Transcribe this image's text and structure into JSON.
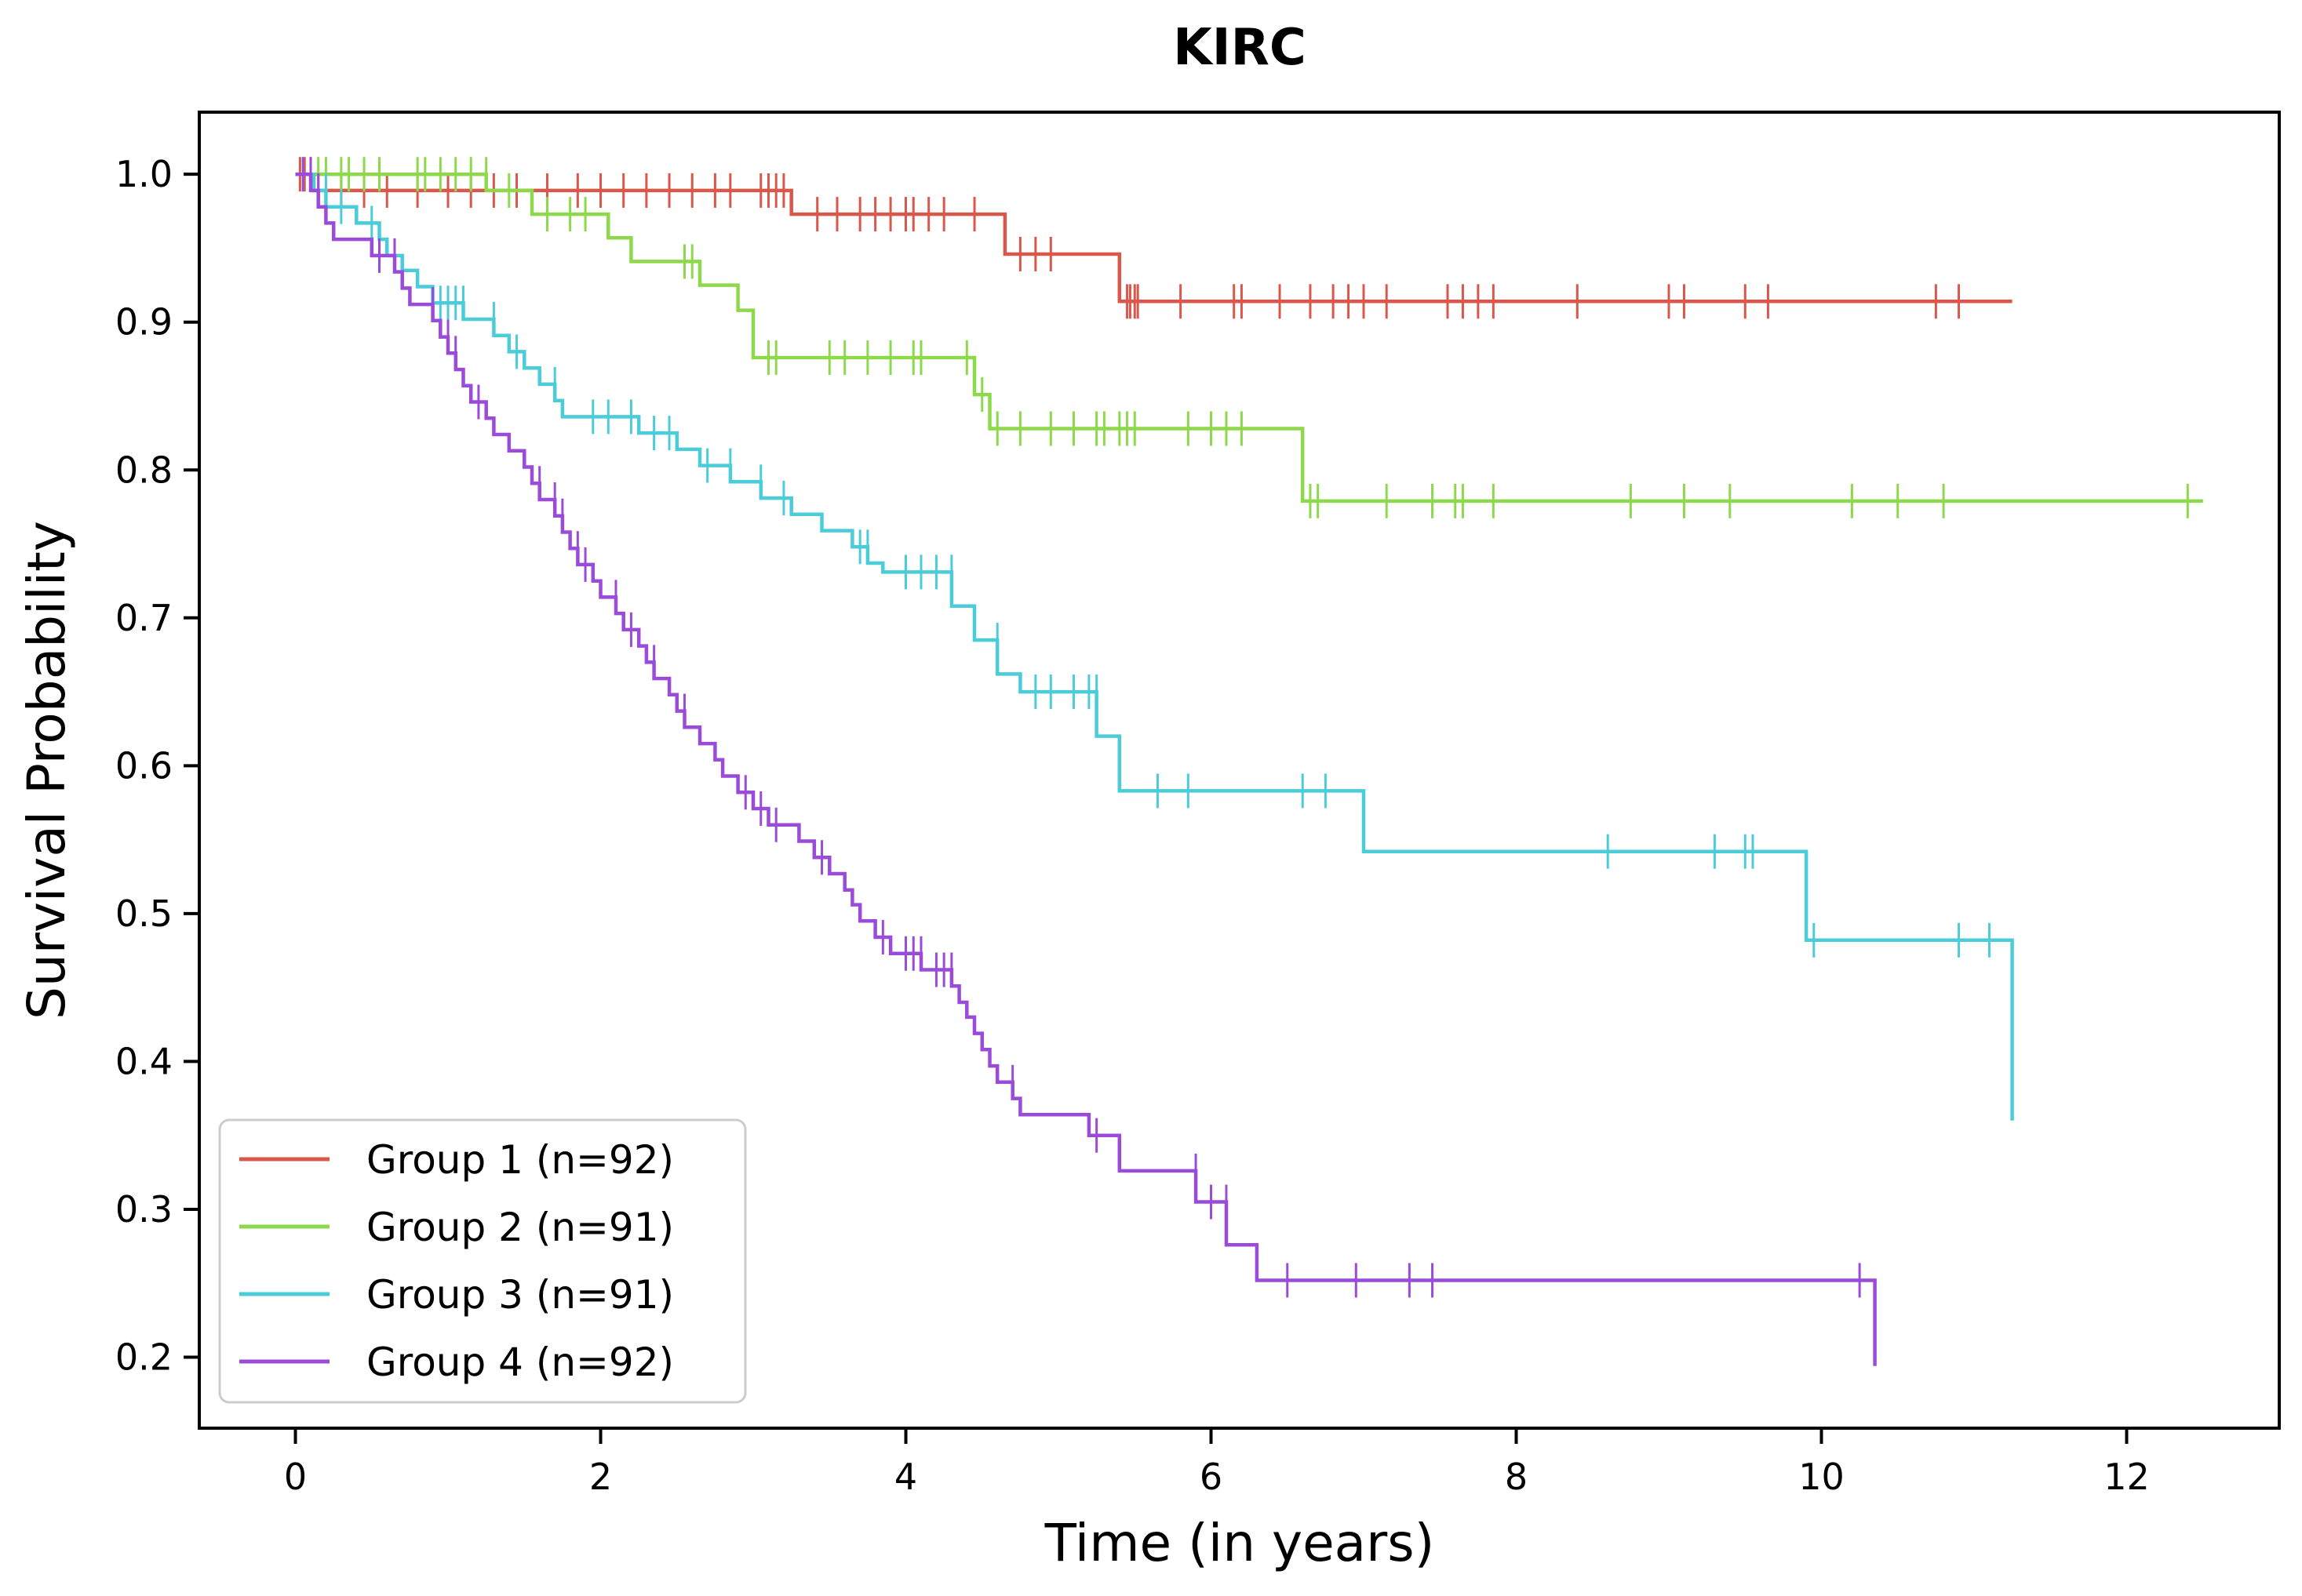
{
  "chart_data": {
    "type": "line",
    "title": "KIRC",
    "xlabel": "Time (in years)",
    "ylabel": "Survival Probability",
    "xlim": [
      -0.63,
      13.0
    ],
    "ylim": [
      0.152,
      1.042
    ],
    "xticks": [
      0,
      2,
      4,
      6,
      8,
      10,
      12
    ],
    "yticks": [
      0.2,
      0.3,
      0.4,
      0.5,
      0.6,
      0.7,
      0.8,
      0.9,
      1.0
    ],
    "xtick_labels": [
      "0",
      "2",
      "4",
      "6",
      "8",
      "10",
      "12"
    ],
    "ytick_labels": [
      "0.2",
      "0.3",
      "0.4",
      "0.5",
      "0.6",
      "0.7",
      "0.8",
      "0.9",
      "1.0"
    ],
    "grid": false,
    "legend_position": "lower-left",
    "series": [
      {
        "name": "Group 1 (n=92)",
        "color": "#d9574b",
        "steps": [
          [
            0,
            1.0
          ],
          [
            0.12,
            0.989
          ],
          [
            3.25,
            0.973
          ],
          [
            4.65,
            0.946
          ],
          [
            5.4,
            0.914
          ],
          [
            11.25,
            0.914
          ]
        ],
        "censors": [
          0.03,
          0.06,
          0.1,
          0.15,
          0.3,
          0.45,
          0.6,
          0.8,
          1.0,
          1.15,
          1.3,
          1.45,
          1.65,
          1.85,
          2.0,
          2.15,
          2.3,
          2.45,
          2.6,
          2.75,
          2.85,
          3.05,
          3.1,
          3.15,
          3.2,
          3.42,
          3.55,
          3.7,
          3.8,
          3.9,
          4.0,
          4.05,
          4.15,
          4.25,
          4.45,
          4.75,
          4.85,
          4.95,
          5.45,
          5.47,
          5.5,
          5.52,
          5.8,
          6.15,
          6.2,
          6.45,
          6.65,
          6.8,
          6.9,
          7.0,
          7.15,
          7.55,
          7.65,
          7.75,
          7.85,
          8.4,
          9.0,
          9.1,
          9.5,
          9.65,
          10.75,
          10.9
        ]
      },
      {
        "name": "Group 2 (n=91)",
        "color": "#8dd94b",
        "steps": [
          [
            0,
            1.0
          ],
          [
            1.25,
            0.989
          ],
          [
            1.55,
            0.973
          ],
          [
            2.05,
            0.957
          ],
          [
            2.2,
            0.941
          ],
          [
            2.65,
            0.925
          ],
          [
            2.9,
            0.908
          ],
          [
            3.0,
            0.876
          ],
          [
            4.45,
            0.851
          ],
          [
            4.55,
            0.828
          ],
          [
            6.6,
            0.779
          ],
          [
            12.5,
            0.779
          ]
        ],
        "censors": [
          0.05,
          0.1,
          0.15,
          0.2,
          0.3,
          0.35,
          0.45,
          0.55,
          0.8,
          0.85,
          0.95,
          1.05,
          1.15,
          1.25,
          1.4,
          1.65,
          1.8,
          1.9,
          2.55,
          2.6,
          3.1,
          3.15,
          3.5,
          3.6,
          3.75,
          3.9,
          4.05,
          4.1,
          4.4,
          4.5,
          4.6,
          4.75,
          4.95,
          5.1,
          5.25,
          5.3,
          5.4,
          5.45,
          5.5,
          5.85,
          6.0,
          6.1,
          6.2,
          6.65,
          6.7,
          7.15,
          7.45,
          7.6,
          7.65,
          7.85,
          8.75,
          9.1,
          9.4,
          10.2,
          10.5,
          10.8,
          12.4
        ]
      },
      {
        "name": "Group 3 (n=91)",
        "color": "#4bccd9",
        "steps": [
          [
            0,
            1.0
          ],
          [
            0.12,
            0.989
          ],
          [
            0.2,
            0.978
          ],
          [
            0.4,
            0.967
          ],
          [
            0.55,
            0.956
          ],
          [
            0.6,
            0.945
          ],
          [
            0.7,
            0.935
          ],
          [
            0.8,
            0.924
          ],
          [
            0.9,
            0.913
          ],
          [
            1.1,
            0.902
          ],
          [
            1.3,
            0.891
          ],
          [
            1.4,
            0.88
          ],
          [
            1.5,
            0.869
          ],
          [
            1.6,
            0.858
          ],
          [
            1.7,
            0.847
          ],
          [
            1.75,
            0.836
          ],
          [
            2.25,
            0.825
          ],
          [
            2.5,
            0.814
          ],
          [
            2.65,
            0.803
          ],
          [
            2.85,
            0.792
          ],
          [
            3.05,
            0.781
          ],
          [
            3.25,
            0.77
          ],
          [
            3.45,
            0.759
          ],
          [
            3.65,
            0.748
          ],
          [
            3.75,
            0.737
          ],
          [
            3.85,
            0.731
          ],
          [
            4.3,
            0.708
          ],
          [
            4.45,
            0.685
          ],
          [
            4.6,
            0.662
          ],
          [
            4.75,
            0.65
          ],
          [
            5.25,
            0.62
          ],
          [
            5.4,
            0.583
          ],
          [
            7.0,
            0.542
          ],
          [
            9.9,
            0.482
          ],
          [
            11.25,
            0.36
          ]
        ],
        "censors": [
          0.2,
          0.3,
          0.5,
          0.65,
          0.95,
          1.0,
          1.05,
          1.1,
          1.3,
          1.45,
          1.7,
          1.95,
          2.05,
          2.2,
          2.35,
          2.45,
          2.7,
          2.85,
          3.05,
          3.2,
          3.7,
          3.75,
          4.0,
          4.1,
          4.2,
          4.3,
          4.6,
          4.85,
          4.95,
          5.1,
          5.2,
          5.25,
          5.65,
          5.85,
          6.6,
          6.75,
          8.6,
          9.3,
          9.5,
          9.55,
          9.95,
          10.9,
          11.1
        ]
      },
      {
        "name": "Group 4 (n=92)",
        "color": "#9b4bd9",
        "steps": [
          [
            0,
            1.0
          ],
          [
            0.1,
            0.989
          ],
          [
            0.15,
            0.978
          ],
          [
            0.2,
            0.967
          ],
          [
            0.25,
            0.956
          ],
          [
            0.5,
            0.945
          ],
          [
            0.65,
            0.934
          ],
          [
            0.7,
            0.923
          ],
          [
            0.75,
            0.912
          ],
          [
            0.9,
            0.901
          ],
          [
            0.95,
            0.89
          ],
          [
            1.0,
            0.879
          ],
          [
            1.05,
            0.868
          ],
          [
            1.1,
            0.857
          ],
          [
            1.15,
            0.846
          ],
          [
            1.25,
            0.835
          ],
          [
            1.3,
            0.824
          ],
          [
            1.4,
            0.813
          ],
          [
            1.5,
            0.802
          ],
          [
            1.55,
            0.791
          ],
          [
            1.6,
            0.78
          ],
          [
            1.7,
            0.769
          ],
          [
            1.75,
            0.758
          ],
          [
            1.8,
            0.747
          ],
          [
            1.85,
            0.736
          ],
          [
            1.95,
            0.725
          ],
          [
            2.0,
            0.714
          ],
          [
            2.1,
            0.703
          ],
          [
            2.15,
            0.692
          ],
          [
            2.25,
            0.681
          ],
          [
            2.3,
            0.67
          ],
          [
            2.35,
            0.659
          ],
          [
            2.45,
            0.648
          ],
          [
            2.5,
            0.637
          ],
          [
            2.55,
            0.626
          ],
          [
            2.65,
            0.615
          ],
          [
            2.75,
            0.604
          ],
          [
            2.8,
            0.593
          ],
          [
            2.9,
            0.582
          ],
          [
            3.0,
            0.571
          ],
          [
            3.1,
            0.56
          ],
          [
            3.3,
            0.549
          ],
          [
            3.4,
            0.538
          ],
          [
            3.5,
            0.527
          ],
          [
            3.6,
            0.516
          ],
          [
            3.65,
            0.506
          ],
          [
            3.7,
            0.495
          ],
          [
            3.8,
            0.484
          ],
          [
            3.9,
            0.473
          ],
          [
            4.1,
            0.462
          ],
          [
            4.3,
            0.451
          ],
          [
            4.35,
            0.44
          ],
          [
            4.4,
            0.43
          ],
          [
            4.45,
            0.419
          ],
          [
            4.5,
            0.408
          ],
          [
            4.55,
            0.397
          ],
          [
            4.6,
            0.386
          ],
          [
            4.7,
            0.375
          ],
          [
            4.75,
            0.364
          ],
          [
            5.2,
            0.35
          ],
          [
            5.4,
            0.326
          ],
          [
            5.9,
            0.305
          ],
          [
            6.1,
            0.276
          ],
          [
            6.3,
            0.252
          ],
          [
            10.35,
            0.194
          ]
        ],
        "censors": [
          0.05,
          0.1,
          0.15,
          0.55,
          0.65,
          0.9,
          1.0,
          1.05,
          1.2,
          1.6,
          1.7,
          1.75,
          1.85,
          1.9,
          2.1,
          2.2,
          2.35,
          2.55,
          2.95,
          3.05,
          3.15,
          3.45,
          3.85,
          4.0,
          4.05,
          4.1,
          4.2,
          4.25,
          4.3,
          4.7,
          5.25,
          5.9,
          6.0,
          6.1,
          6.5,
          6.95,
          7.3,
          7.45,
          10.25
        ]
      }
    ]
  }
}
